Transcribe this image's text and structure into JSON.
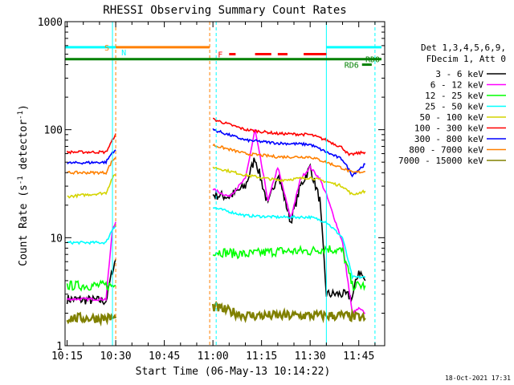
{
  "chart_data": {
    "type": "line",
    "title": "RHESSI Observing Summary Count Rates",
    "xlabel": "Start Time (06-May-13 10:14:22)",
    "ylabel": "Count Rate (s-1 detector-1)",
    "ylabel_parts": {
      "main": "Count Rate (s",
      "sup1": "-1",
      "mid": " detector",
      "sup2": "-1",
      "end": ")"
    },
    "y_scale": "log",
    "xlim": [
      "10:14:22",
      "11:53:00"
    ],
    "ylim": [
      1,
      1000
    ],
    "x_ticks": [
      "10:15",
      "10:30",
      "10:45",
      "11:00",
      "11:15",
      "11:30",
      "11:45"
    ],
    "y_ticks": [
      {
        "label": "1",
        "value": 1
      },
      {
        "label": "10",
        "value": 10
      },
      {
        "label": "100",
        "value": 100
      },
      {
        "label": "1000",
        "value": 1000
      }
    ],
    "legend": {
      "header": [
        "Det 1,3,4,5,6,9,",
        "FDecim 1, Att 0"
      ],
      "placement": "right"
    },
    "series": [
      {
        "name": "3 - 6 keV",
        "color": "#000000",
        "points": [
          [
            "10:15",
            2.7
          ],
          [
            "10:27",
            2.6
          ],
          [
            "10:29",
            5
          ],
          [
            "10:30",
            6.3
          ],
          [
            "11:00",
            25
          ],
          [
            "11:05",
            24
          ],
          [
            "11:10",
            30
          ],
          [
            "11:13",
            55
          ],
          [
            "11:17",
            20
          ],
          [
            "11:20",
            40
          ],
          [
            "11:24",
            14
          ],
          [
            "11:27",
            30
          ],
          [
            "11:30",
            45
          ],
          [
            "11:33",
            22
          ],
          [
            "11:35",
            3
          ],
          [
            "11:40",
            3
          ],
          [
            "11:43",
            2.8
          ],
          [
            "11:45",
            5
          ],
          [
            "11:47",
            4
          ]
        ]
      },
      {
        "name": "6 - 12 keV",
        "color": "#ff00ff",
        "points": [
          [
            "10:15",
            2.7
          ],
          [
            "10:27",
            2.7
          ],
          [
            "10:29",
            12
          ],
          [
            "10:30",
            14
          ],
          [
            "11:00",
            28
          ],
          [
            "11:05",
            24
          ],
          [
            "11:10",
            35
          ],
          [
            "11:13",
            100
          ],
          [
            "11:17",
            22
          ],
          [
            "11:20",
            45
          ],
          [
            "11:24",
            15
          ],
          [
            "11:27",
            35
          ],
          [
            "11:30",
            45
          ],
          [
            "11:33",
            35
          ],
          [
            "11:35",
            25
          ],
          [
            "11:40",
            9
          ],
          [
            "11:43",
            2
          ],
          [
            "11:45",
            2.2
          ],
          [
            "11:47",
            2
          ]
        ]
      },
      {
        "name": "12 - 25 keV",
        "color": "#00ff00",
        "points": [
          [
            "10:15",
            3.6
          ],
          [
            "10:27",
            3.6
          ],
          [
            "10:29",
            3.6
          ],
          [
            "10:30",
            3.6
          ],
          [
            "11:00",
            7.5
          ],
          [
            "11:10",
            7
          ],
          [
            "11:20",
            7.5
          ],
          [
            "11:30",
            7.5
          ],
          [
            "11:35",
            8
          ],
          [
            "11:40",
            7.5
          ],
          [
            "11:43",
            3.6
          ],
          [
            "11:47",
            3.6
          ]
        ]
      },
      {
        "name": "25 - 50 keV",
        "color": "#00ffff",
        "points": [
          [
            "10:15",
            9
          ],
          [
            "10:27",
            9
          ],
          [
            "10:29",
            12
          ],
          [
            "10:30",
            13
          ],
          [
            "11:00",
            19
          ],
          [
            "11:10",
            16
          ],
          [
            "11:20",
            15.5
          ],
          [
            "11:30",
            15.5
          ],
          [
            "11:35",
            14
          ],
          [
            "11:40",
            10
          ],
          [
            "11:43",
            4.3
          ],
          [
            "11:47",
            4.3
          ]
        ]
      },
      {
        "name": "50 - 100 keV",
        "color": "#d4d400",
        "points": [
          [
            "10:15",
            24
          ],
          [
            "10:27",
            26
          ],
          [
            "10:29",
            36
          ],
          [
            "10:30",
            38
          ],
          [
            "11:00",
            45
          ],
          [
            "11:10",
            38
          ],
          [
            "11:20",
            34
          ],
          [
            "11:30",
            36
          ],
          [
            "11:35",
            33
          ],
          [
            "11:40",
            30
          ],
          [
            "11:43",
            25
          ],
          [
            "11:47",
            27
          ]
        ]
      },
      {
        "name": "100 - 300 keV",
        "color": "#ff0000",
        "points": [
          [
            "10:15",
            62
          ],
          [
            "10:27",
            62
          ],
          [
            "10:29",
            80
          ],
          [
            "10:30",
            92
          ],
          [
            "11:00",
            125
          ],
          [
            "11:10",
            100
          ],
          [
            "11:20",
            92
          ],
          [
            "11:30",
            90
          ],
          [
            "11:35",
            80
          ],
          [
            "11:40",
            68
          ],
          [
            "11:42",
            58
          ],
          [
            "11:44",
            60
          ],
          [
            "11:47",
            62
          ]
        ]
      },
      {
        "name": "300 - 800 keV",
        "color": "#0000ff",
        "points": [
          [
            "10:15",
            49
          ],
          [
            "10:27",
            50
          ],
          [
            "10:29",
            62
          ],
          [
            "10:30",
            65
          ],
          [
            "11:00",
            100
          ],
          [
            "11:10",
            80
          ],
          [
            "11:20",
            75
          ],
          [
            "11:30",
            73
          ],
          [
            "11:35",
            62
          ],
          [
            "11:40",
            53
          ],
          [
            "11:43",
            38
          ],
          [
            "11:47",
            48
          ]
        ]
      },
      {
        "name": "800 - 7000 keV",
        "color": "#ff8000",
        "points": [
          [
            "10:15",
            40
          ],
          [
            "10:27",
            40
          ],
          [
            "10:29",
            52
          ],
          [
            "10:30",
            55
          ],
          [
            "11:00",
            72
          ],
          [
            "11:10",
            60
          ],
          [
            "11:20",
            56
          ],
          [
            "11:30",
            56
          ],
          [
            "11:35",
            50
          ],
          [
            "11:40",
            44
          ],
          [
            "11:43",
            40
          ],
          [
            "11:47",
            41
          ]
        ]
      },
      {
        "name": "7000 - 15000 keV",
        "color": "#808000",
        "points": [
          [
            "10:15",
            1.8
          ],
          [
            "10:27",
            1.8
          ],
          [
            "10:30",
            1.8
          ],
          [
            "11:00",
            2.3
          ],
          [
            "11:10",
            1.9
          ],
          [
            "11:20",
            1.9
          ],
          [
            "11:30",
            1.9
          ],
          [
            "11:40",
            1.9
          ],
          [
            "11:47",
            1.8
          ]
        ]
      }
    ],
    "flags": [
      {
        "name": "S",
        "color": "#ff8000",
        "value": 580,
        "segments": [
          [
            "10:30",
            "10:59"
          ]
        ]
      },
      {
        "name": "N",
        "color": "#00ffff",
        "value": 580,
        "segments": [
          [
            "10:14:22",
            "10:30"
          ],
          [
            "11:35",
            "11:52"
          ]
        ]
      },
      {
        "name": "F",
        "color": "#ff0000",
        "value": 500,
        "segments": [
          [
            "11:05",
            "11:07"
          ],
          [
            "11:13",
            "11:18"
          ],
          [
            "11:20",
            "11:23"
          ],
          [
            "11:28",
            "11:35"
          ]
        ]
      },
      {
        "name": "RD0",
        "color": "#008000",
        "value": 450,
        "segments": [
          [
            "10:14:22",
            "11:52"
          ]
        ]
      },
      {
        "name": "RD6",
        "color": "#008000",
        "value": 400,
        "segments": [
          [
            "11:46",
            "11:49"
          ]
        ]
      }
    ],
    "vertical_markers": [
      {
        "time": "10:29",
        "color": "#00ffff",
        "style": "solid"
      },
      {
        "time": "10:30",
        "color": "#ff8000",
        "style": "dashed"
      },
      {
        "time": "10:59",
        "color": "#ff8000",
        "style": "dashed"
      },
      {
        "time": "11:01",
        "color": "#00ffff",
        "style": "dashed"
      },
      {
        "time": "11:35",
        "color": "#00ffff",
        "style": "solid"
      },
      {
        "time": "11:50",
        "color": "#00ffff",
        "style": "dashed"
      }
    ],
    "data_gap": [
      "10:31",
      "10:59"
    ],
    "timestamp": "18-Oct-2021 17:31",
    "grid": false
  },
  "colors": {
    "background": "#ffffff",
    "axis": "#000000"
  }
}
